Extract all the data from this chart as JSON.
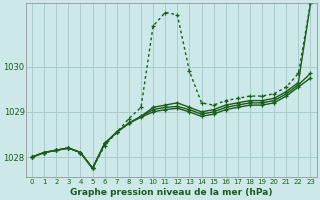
{
  "background_color": "#cce8e8",
  "plot_bg_color": "#cce8e8",
  "grid_color": "#aacccc",
  "line_color": "#1a5c1a",
  "title": "Graphe pression niveau de la mer (hPa)",
  "ylabel_ticks": [
    1028,
    1029,
    1030
  ],
  "xlim": [
    -0.5,
    23.5
  ],
  "ylim": [
    1027.55,
    1031.4
  ],
  "xticks": [
    0,
    1,
    2,
    3,
    4,
    5,
    6,
    7,
    8,
    9,
    10,
    11,
    12,
    13,
    14,
    15,
    16,
    17,
    18,
    19,
    20,
    21,
    22,
    23
  ],
  "series": [
    {
      "x": [
        0,
        1,
        2,
        3,
        4,
        5,
        6,
        7,
        8,
        9,
        10,
        11,
        12,
        13,
        14,
        15,
        16,
        17,
        18,
        19,
        20,
        21,
        22,
        23
      ],
      "y": [
        1028.0,
        1028.1,
        1028.15,
        1028.2,
        1028.1,
        1027.75,
        1028.25,
        1028.55,
        1028.85,
        1029.1,
        1030.9,
        1031.2,
        1031.15,
        1029.9,
        1029.2,
        1029.15,
        1029.25,
        1029.3,
        1029.35,
        1029.35,
        1029.4,
        1029.55,
        1029.85,
        1031.4
      ],
      "style": "dotted",
      "lw": 1.0
    },
    {
      "x": [
        0,
        1,
        2,
        3,
        4,
        5,
        6,
        7,
        8,
        9,
        10,
        11,
        12,
        13,
        14,
        15,
        16,
        17,
        18,
        19,
        20,
        21,
        22,
        23
      ],
      "y": [
        1028.0,
        1028.1,
        1028.15,
        1028.2,
        1028.1,
        1027.75,
        1028.3,
        1028.55,
        1028.75,
        1028.9,
        1029.1,
        1029.15,
        1029.2,
        1029.1,
        1029.0,
        1029.05,
        1029.15,
        1029.2,
        1029.25,
        1029.25,
        1029.3,
        1029.45,
        1029.65,
        1031.4
      ],
      "style": "solid",
      "lw": 1.0
    },
    {
      "x": [
        0,
        1,
        2,
        3,
        4,
        5,
        6,
        7,
        8,
        9,
        10,
        11,
        12,
        13,
        14,
        15,
        16,
        17,
        18,
        19,
        20,
        21,
        22,
        23
      ],
      "y": [
        1028.0,
        1028.1,
        1028.15,
        1028.2,
        1028.1,
        1027.75,
        1028.3,
        1028.55,
        1028.75,
        1028.9,
        1029.05,
        1029.1,
        1029.12,
        1029.05,
        1028.95,
        1029.0,
        1029.1,
        1029.15,
        1029.2,
        1029.2,
        1029.25,
        1029.4,
        1029.6,
        1029.85
      ],
      "style": "solid",
      "lw": 1.0
    },
    {
      "x": [
        0,
        1,
        2,
        3,
        4,
        5,
        6,
        7,
        8,
        9,
        10,
        11,
        12,
        13,
        14,
        15,
        16,
        17,
        18,
        19,
        20,
        21,
        22,
        23
      ],
      "y": [
        1028.0,
        1028.1,
        1028.15,
        1028.2,
        1028.1,
        1027.75,
        1028.3,
        1028.55,
        1028.75,
        1028.88,
        1029.0,
        1029.05,
        1029.08,
        1029.0,
        1028.9,
        1028.95,
        1029.05,
        1029.1,
        1029.15,
        1029.15,
        1029.2,
        1029.35,
        1029.55,
        1029.75
      ],
      "style": "solid",
      "lw": 1.0
    }
  ]
}
